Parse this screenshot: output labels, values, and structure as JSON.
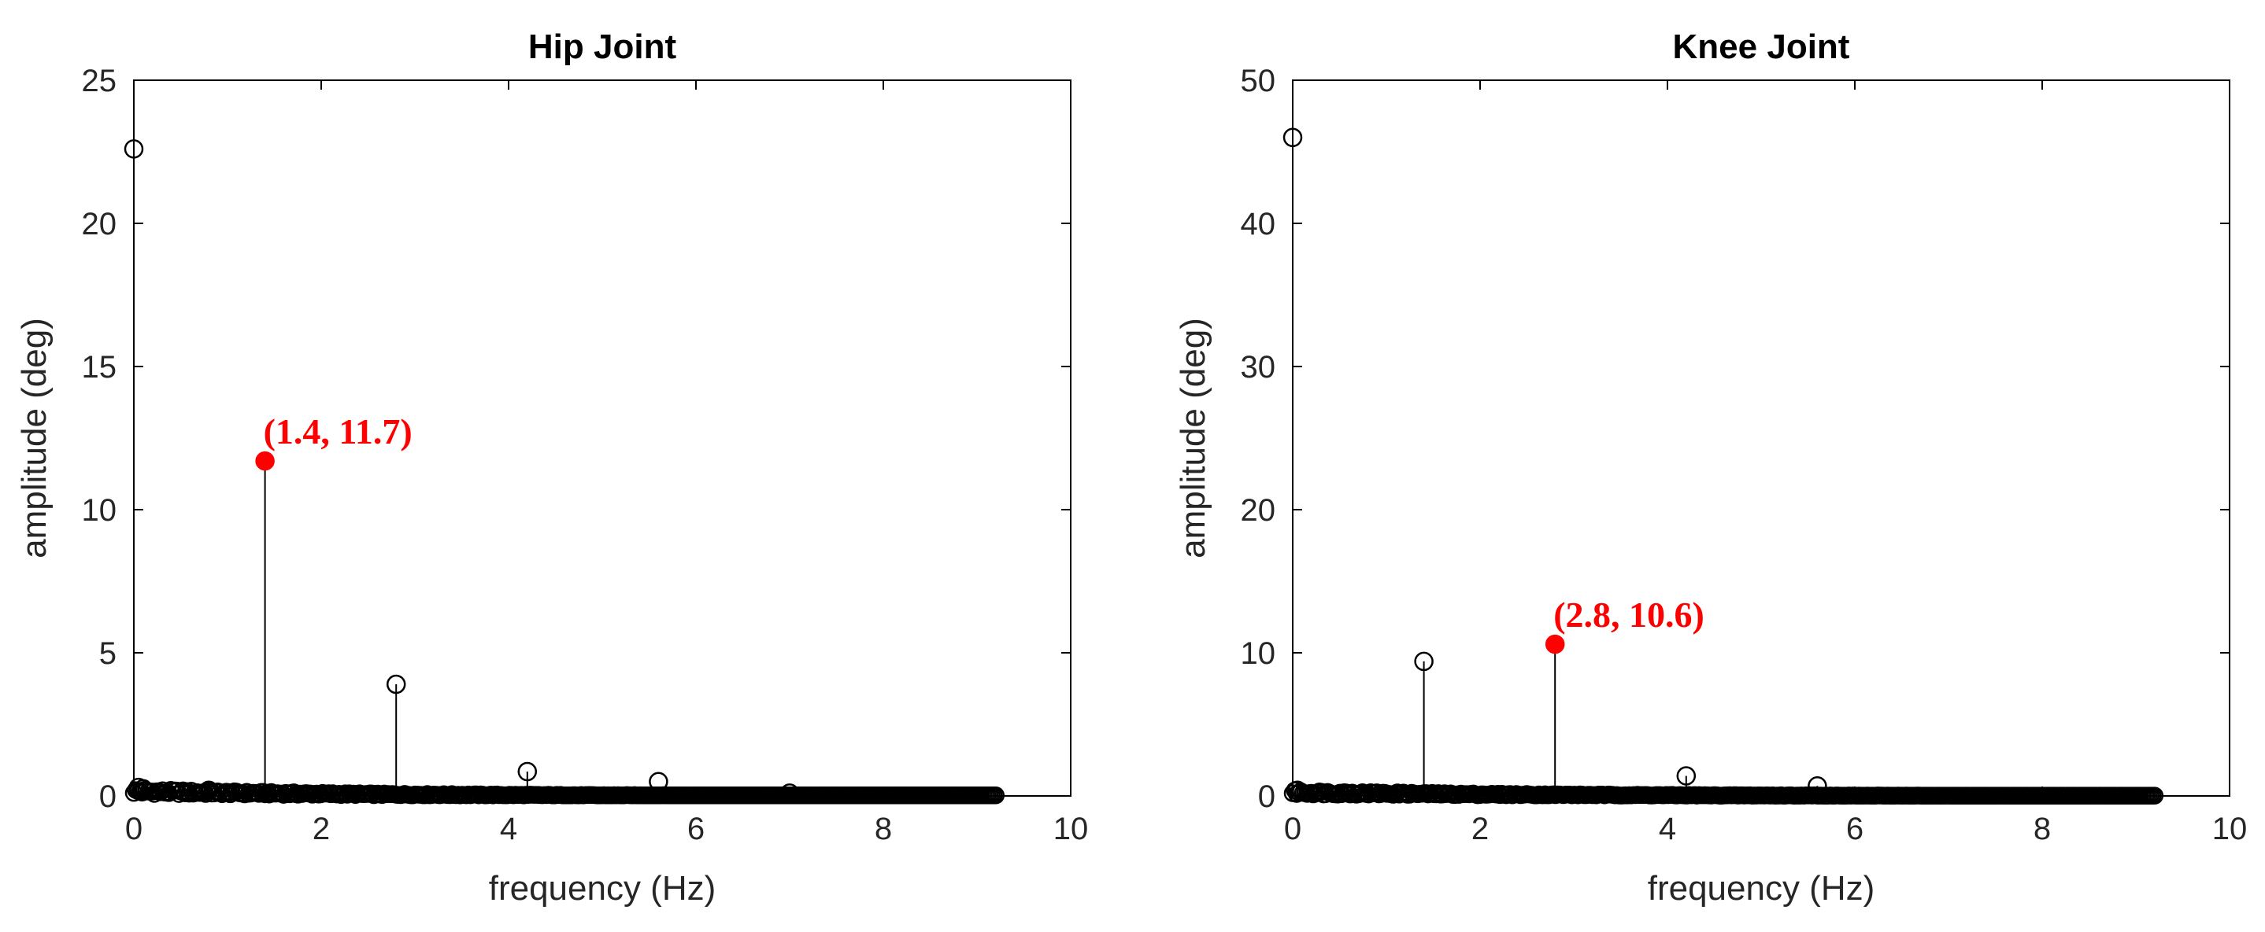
{
  "chart_data": [
    {
      "type": "scatter",
      "style": "stem",
      "title": "Hip Joint",
      "xlabel": "frequency (Hz)",
      "ylabel": "amplitude (deg)",
      "xlim": [
        0,
        10
      ],
      "ylim": [
        0,
        25
      ],
      "xticks": [
        0,
        2,
        4,
        6,
        8,
        10
      ],
      "yticks": [
        0,
        5,
        10,
        15,
        20,
        25
      ],
      "grid": false,
      "x_max_data": 9.2,
      "series": [
        {
          "x": [
            0.0,
            0.05,
            0.1,
            0.8,
            1.4,
            2.8,
            4.2,
            5.6,
            7.0
          ],
          "y": [
            22.6,
            0.3,
            0.25,
            0.2,
            11.7,
            3.9,
            0.85,
            0.5,
            0.1
          ]
        }
      ],
      "highlight": {
        "x": 1.4,
        "y": 11.7,
        "label": "(1.4, 11.7)",
        "color": "#ff0000"
      }
    },
    {
      "type": "scatter",
      "style": "stem",
      "title": "Knee Joint",
      "xlabel": "frequency (Hz)",
      "ylabel": "amplitude (deg)",
      "xlim": [
        0,
        10
      ],
      "ylim": [
        0,
        50
      ],
      "xticks": [
        0,
        2,
        4,
        6,
        8,
        10
      ],
      "yticks": [
        0,
        10,
        20,
        30,
        40,
        50
      ],
      "grid": false,
      "x_max_data": 9.2,
      "series": [
        {
          "x": [
            0.0,
            0.05,
            1.4,
            2.8,
            4.2,
            5.6
          ],
          "y": [
            46.0,
            0.4,
            9.4,
            10.6,
            1.4,
            0.7
          ]
        }
      ],
      "highlight": {
        "x": 2.8,
        "y": 10.6,
        "label": "(2.8, 10.6)",
        "color": "#ff0000"
      }
    }
  ]
}
